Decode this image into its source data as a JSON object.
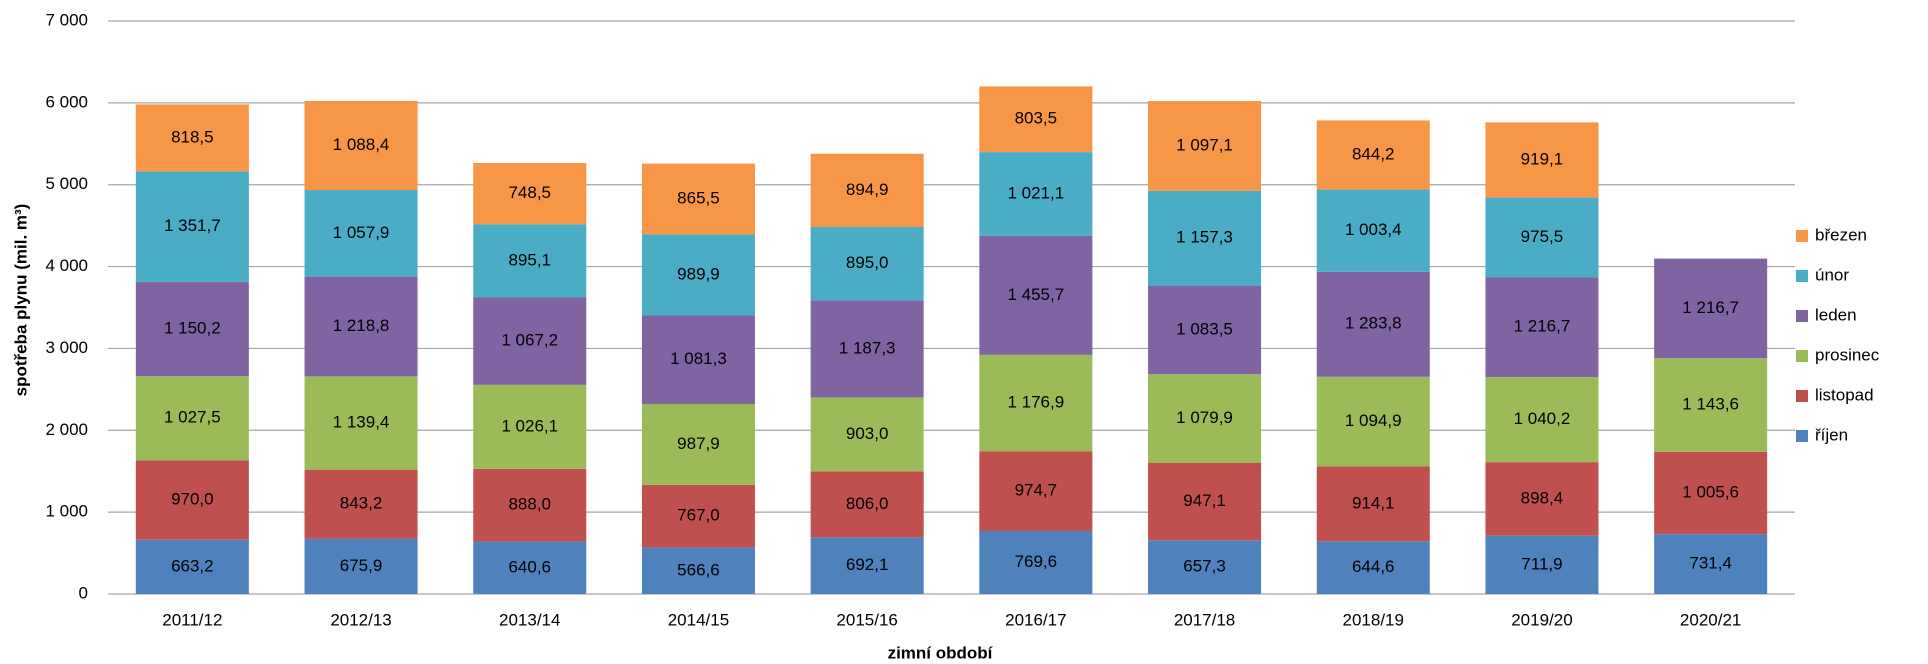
{
  "chart_data": {
    "type": "stacked_bar",
    "y_label": "spotřeba plynu (mil. m³)",
    "x_label": "zimní období",
    "categories": [
      "2011/12",
      "2012/13",
      "2013/14",
      "2014/15",
      "2015/16",
      "2016/17",
      "2017/18",
      "2018/19",
      "2019/20",
      "2020/21"
    ],
    "series": [
      {
        "name": "říjen",
        "color": "#4f81bd",
        "values": [
          663.2,
          675.9,
          640.6,
          566.6,
          692.1,
          769.6,
          657.3,
          644.6,
          711.9,
          731.4
        ],
        "value_labels": [
          "663,2",
          "675,9",
          "640,6",
          "566,6",
          "692,1",
          "769,6",
          "657,3",
          "644,6",
          "711,9",
          "731,4"
        ]
      },
      {
        "name": "listopad",
        "color": "#c0504d",
        "values": [
          970.0,
          843.2,
          888.0,
          767.0,
          806.0,
          974.7,
          947.1,
          914.1,
          898.4,
          1005.6
        ],
        "value_labels": [
          "970,0",
          "843,2",
          "888,0",
          "767,0",
          "806,0",
          "974,7",
          "947,1",
          "914,1",
          "898,4",
          "1 005,6"
        ]
      },
      {
        "name": "prosinec",
        "color": "#9bbb59",
        "values": [
          1027.5,
          1139.4,
          1026.1,
          987.9,
          903.0,
          1176.9,
          1079.9,
          1094.9,
          1040.2,
          1143.6
        ],
        "value_labels": [
          "1 027,5",
          "1 139,4",
          "1 026,1",
          "987,9",
          "903,0",
          "1 176,9",
          "1 079,9",
          "1 094,9",
          "1 040,2",
          "1 143,6"
        ]
      },
      {
        "name": "leden",
        "color": "#8064a2",
        "values": [
          1150.2,
          1218.8,
          1067.2,
          1081.3,
          1187.3,
          1455.7,
          1083.5,
          1283.8,
          1216.7,
          1216.7
        ],
        "value_labels": [
          "1 150,2",
          "1 218,8",
          "1 067,2",
          "1 081,3",
          "1 187,3",
          "1 455,7",
          "1 083,5",
          "1 283,8",
          "1 216,7",
          "1 216,7"
        ]
      },
      {
        "name": "únor",
        "color": "#4bacc6",
        "values": [
          1351.7,
          1057.9,
          895.1,
          989.9,
          895.0,
          1021.1,
          1157.3,
          1003.4,
          975.5,
          null
        ],
        "value_labels": [
          "1 351,7",
          "1 057,9",
          "895,1",
          "989,9",
          "895,0",
          "1 021,1",
          "1 157,3",
          "1 003,4",
          "975,5",
          null
        ]
      },
      {
        "name": "březen",
        "color": "#f79646",
        "values": [
          818.5,
          1088.4,
          748.5,
          865.5,
          894.9,
          803.5,
          1097.1,
          844.2,
          919.1,
          null
        ],
        "value_labels": [
          "818,5",
          "1 088,4",
          "748,5",
          "865,5",
          "894,9",
          "803,5",
          "1 097,1",
          "844,2",
          "919,1",
          null
        ]
      }
    ],
    "ylim": [
      0,
      7000
    ],
    "yticks": [
      0,
      {
        "value": 1000,
        "label": "1 000"
      },
      {
        "value": 2000,
        "label": "2 000"
      },
      {
        "value": 3000,
        "label": "3 000"
      },
      {
        "value": 4000,
        "label": "4 000"
      },
      {
        "value": 5000,
        "label": "5 000"
      },
      {
        "value": 6000,
        "label": "6 000"
      },
      {
        "value": 7000,
        "label": "7 000"
      }
    ],
    "grid": true,
    "legend": "right"
  }
}
